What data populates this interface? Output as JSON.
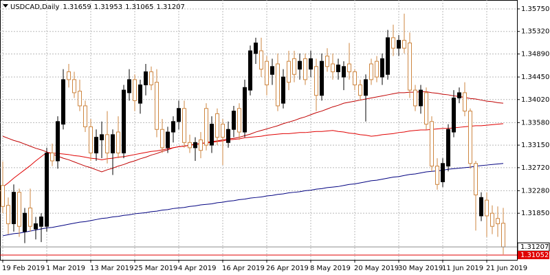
{
  "chart_data": {
    "type": "candlestick",
    "symbol": "USDCAD,Daily",
    "categories": [
      "19 Feb 2019",
      null,
      null,
      null,
      null,
      null,
      null,
      null,
      "1 Mar 2019",
      null,
      null,
      null,
      null,
      null,
      null,
      null,
      "13 Mar 2019",
      null,
      null,
      null,
      null,
      null,
      null,
      null,
      "25 Mar 2019",
      null,
      null,
      null,
      null,
      null,
      null,
      null,
      "4 Apr 2019",
      null,
      null,
      null,
      null,
      null,
      null,
      null,
      "16 Apr 2019",
      null,
      null,
      null,
      null,
      null,
      null,
      null,
      "26 Apr 2019",
      null,
      null,
      null,
      null,
      null,
      null,
      null,
      "8 May 2019",
      null,
      null,
      null,
      null,
      null,
      null,
      null,
      "20 May 2019",
      null,
      null,
      null,
      null,
      null,
      null,
      null,
      "30 May 2019",
      null,
      null,
      null,
      null,
      null,
      null,
      null,
      "11 Jun 2019",
      null,
      null,
      null,
      null,
      null,
      null,
      null,
      "21 Jun 2019",
      null,
      null,
      null
    ],
    "open": [
      1.3238,
      1.32,
      1.3165,
      1.3225,
      1.315,
      1.3195,
      1.3155,
      1.316,
      1.316,
      1.33,
      1.3285,
      1.3355,
      1.3455,
      1.344,
      1.3418,
      1.339,
      1.335,
      1.33,
      1.3325,
      1.3335,
      1.33,
      1.334,
      1.33,
      1.3415,
      1.344,
      1.3395,
      1.343,
      1.3455,
      1.3435,
      1.3345,
      1.331,
      1.334,
      1.336,
      1.3385,
      1.332,
      1.331,
      1.3325,
      1.3385,
      1.3315,
      1.3375,
      1.3355,
      1.332,
      1.3345,
      1.3385,
      1.334,
      1.342,
      1.349,
      1.3495,
      1.3475,
      1.345,
      1.347,
      1.3395,
      1.3475,
      1.348,
      1.346,
      1.348,
      1.346,
      1.3465,
      1.341,
      1.3485,
      1.347,
      1.3455,
      1.3445,
      1.347,
      1.3455,
      1.343,
      1.341,
      1.347,
      1.3475,
      1.3445,
      1.345,
      1.352,
      1.35,
      1.3515,
      1.351,
      1.342,
      1.339,
      1.3415,
      1.336,
      1.3275,
      1.3245,
      1.3275,
      1.334,
      1.3405,
      1.3415,
      1.338,
      1.328,
      1.318,
      1.321,
      1.3185,
      1.3175,
      1.31659
    ],
    "high": [
      1.3284,
      1.3215,
      1.324,
      1.3232,
      1.3195,
      1.3232,
      1.3178,
      1.3185,
      1.331,
      1.3318,
      1.337,
      1.346,
      1.347,
      1.3455,
      1.344,
      1.34,
      1.3365,
      1.3345,
      1.336,
      1.338,
      1.3345,
      1.337,
      1.343,
      1.346,
      1.345,
      1.344,
      1.347,
      1.3465,
      1.346,
      1.3365,
      1.335,
      1.337,
      1.34,
      1.34,
      1.3335,
      1.333,
      1.334,
      1.3395,
      1.337,
      1.3385,
      1.3365,
      1.336,
      1.339,
      1.3395,
      1.344,
      1.3505,
      1.352,
      1.352,
      1.3485,
      1.348,
      1.349,
      1.346,
      1.3495,
      1.3495,
      1.349,
      1.349,
      1.3495,
      1.348,
      1.349,
      1.35,
      1.349,
      1.348,
      1.3475,
      1.351,
      1.346,
      1.344,
      1.345,
      1.348,
      1.3485,
      1.349,
      1.3535,
      1.3545,
      1.3525,
      1.3566,
      1.353,
      1.343,
      1.343,
      1.3425,
      1.337,
      1.329,
      1.329,
      1.3355,
      1.342,
      1.3425,
      1.3435,
      1.3385,
      1.3285,
      1.3225,
      1.3225,
      1.32,
      1.3198,
      1.31953
    ],
    "low": [
      1.3185,
      1.3145,
      1.315,
      1.314,
      1.3128,
      1.315,
      1.3135,
      1.313,
      1.315,
      1.3275,
      1.327,
      1.3345,
      1.3425,
      1.3405,
      1.338,
      1.334,
      1.3285,
      1.3285,
      1.329,
      1.328,
      1.3258,
      1.329,
      1.329,
      1.34,
      1.338,
      1.3375,
      1.341,
      1.342,
      1.333,
      1.33,
      1.33,
      1.332,
      1.3345,
      1.331,
      1.33,
      1.3285,
      1.329,
      1.3305,
      1.33,
      1.3315,
      1.3277,
      1.331,
      1.333,
      1.3325,
      1.333,
      1.341,
      1.347,
      1.3445,
      1.341,
      1.343,
      1.338,
      1.3385,
      1.342,
      1.3435,
      1.344,
      1.343,
      1.3445,
      1.338,
      1.34,
      1.3455,
      1.344,
      1.344,
      1.342,
      1.344,
      1.342,
      1.34,
      1.336,
      1.343,
      1.3435,
      1.343,
      1.344,
      1.3485,
      1.3485,
      1.349,
      1.3405,
      1.338,
      1.3375,
      1.3345,
      1.3265,
      1.323,
      1.3235,
      1.3265,
      1.333,
      1.3395,
      1.337,
      1.327,
      1.3152,
      1.317,
      1.314,
      1.3145,
      1.314,
      1.31065
    ],
    "close": [
      1.3198,
      1.3165,
      1.3225,
      1.316,
      1.3185,
      1.316,
      1.3165,
      1.3178,
      1.33,
      1.3285,
      1.336,
      1.344,
      1.344,
      1.3415,
      1.339,
      1.335,
      1.33,
      1.333,
      1.3335,
      1.33,
      1.3335,
      1.33,
      1.342,
      1.344,
      1.34,
      1.343,
      1.3455,
      1.343,
      1.3345,
      1.331,
      1.334,
      1.336,
      1.3385,
      1.332,
      1.331,
      1.332,
      1.3305,
      1.3315,
      1.3355,
      1.333,
      1.333,
      1.3345,
      1.338,
      1.334,
      1.3425,
      1.3495,
      1.351,
      1.346,
      1.343,
      1.3465,
      1.339,
      1.3445,
      1.3435,
      1.345,
      1.3475,
      1.344,
      1.348,
      1.341,
      1.3475,
      1.3465,
      1.3455,
      1.3468,
      1.3465,
      1.3455,
      1.343,
      1.341,
      1.344,
      1.344,
      1.3445,
      1.348,
      1.352,
      1.35,
      1.3515,
      1.35,
      1.342,
      1.339,
      1.342,
      1.3355,
      1.3275,
      1.324,
      1.328,
      1.3345,
      1.3405,
      1.3415,
      1.338,
      1.328,
      1.322,
      1.3215,
      1.318,
      1.316,
      1.3165,
      1.31207
    ],
    "up_color": "#000000",
    "down_color": "#cd853f",
    "series": [
      {
        "color": "#c00000",
        "values": [
          1.3332,
          1.3328,
          1.3324,
          1.3321,
          1.3317,
          1.3313,
          1.3309,
          1.3306,
          1.3302,
          1.3298,
          1.3294,
          1.329,
          1.3287,
          1.3283,
          1.3279,
          1.3275,
          1.3272,
          1.3268,
          1.3264,
          1.3268,
          1.3271,
          1.3275,
          1.3278,
          1.3282,
          1.3285,
          1.3289,
          1.3292,
          1.3296,
          1.3299,
          1.3303,
          1.3306,
          1.331,
          1.3312,
          1.3313,
          1.3315,
          1.3317,
          1.3318,
          1.332,
          1.3322,
          1.3323,
          1.3325,
          1.3327,
          1.3328,
          1.333,
          1.3333,
          1.3336,
          1.334,
          1.3343,
          1.3346,
          1.3349,
          1.3352,
          1.3356,
          1.3359,
          1.3362,
          1.3366,
          1.3369,
          1.3373,
          1.3377,
          1.338,
          1.3384,
          1.3388,
          1.3391,
          1.3395,
          1.3397,
          1.3399,
          1.3401,
          1.3403,
          1.3405,
          1.3407,
          1.3409,
          1.3411,
          1.3413,
          1.3415,
          1.3415,
          1.3416,
          1.3416,
          1.3417,
          1.3417,
          1.3415,
          1.3414,
          1.3412,
          1.3411,
          1.3409,
          1.3408,
          1.3406,
          1.3404,
          1.3403,
          1.3401,
          1.3399,
          1.3398,
          1.3396,
          1.3395
        ]
      },
      {
        "color": "#e00000",
        "values": [
          1.3235,
          1.3243,
          1.3252,
          1.326,
          1.3268,
          1.3276,
          1.3285,
          1.3293,
          1.3301,
          1.33,
          1.3299,
          1.3298,
          1.3297,
          1.3295,
          1.3294,
          1.3292,
          1.329,
          1.3289,
          1.3287,
          1.3289,
          1.329,
          1.3292,
          1.3293,
          1.3295,
          1.3297,
          1.3299,
          1.3301,
          1.3303,
          1.3304,
          1.3306,
          1.3308,
          1.331,
          1.3312,
          1.3313,
          1.3315,
          1.3316,
          1.3318,
          1.3319,
          1.332,
          1.3322,
          1.3323,
          1.3325,
          1.3326,
          1.3327,
          1.3329,
          1.333,
          1.3331,
          1.3332,
          1.3334,
          1.3335,
          1.3336,
          1.3337,
          1.3337,
          1.3338,
          1.3339,
          1.3339,
          1.334,
          1.3341,
          1.3341,
          1.3342,
          1.3343,
          1.3341,
          1.334,
          1.3338,
          1.3337,
          1.3335,
          1.3334,
          1.3332,
          1.3333,
          1.3335,
          1.3336,
          1.3337,
          1.3339,
          1.334,
          1.3342,
          1.3343,
          1.3344,
          1.3344,
          1.3345,
          1.3346,
          1.3347,
          1.3347,
          1.3348,
          1.3349,
          1.335,
          1.3351,
          1.3352,
          1.3352,
          1.3353,
          1.3354,
          1.3355,
          1.3356
        ]
      },
      {
        "color": "#000080",
        "values": [
          1.3142,
          1.3144,
          1.3146,
          1.3147,
          1.3149,
          1.3151,
          1.3153,
          1.3155,
          1.3157,
          1.3158,
          1.316,
          1.3162,
          1.3164,
          1.3166,
          1.3168,
          1.3169,
          1.3171,
          1.3173,
          1.3175,
          1.3176,
          1.3178,
          1.3179,
          1.3181,
          1.3182,
          1.3184,
          1.3185,
          1.3186,
          1.3188,
          1.3189,
          1.3191,
          1.3192,
          1.3194,
          1.3195,
          1.3196,
          1.3198,
          1.3199,
          1.3201,
          1.3202,
          1.3203,
          1.3205,
          1.3206,
          1.3208,
          1.3209,
          1.3211,
          1.3212,
          1.3214,
          1.3215,
          1.3216,
          1.3218,
          1.3219,
          1.3221,
          1.3222,
          1.3224,
          1.3225,
          1.3226,
          1.3228,
          1.3229,
          1.3231,
          1.3232,
          1.3234,
          1.3235,
          1.3236,
          1.3238,
          1.324,
          1.3241,
          1.3243,
          1.3245,
          1.3247,
          1.3248,
          1.325,
          1.3252,
          1.3254,
          1.3255,
          1.3257,
          1.3259,
          1.326,
          1.3262,
          1.3264,
          1.3265,
          1.3266,
          1.3267,
          1.3269,
          1.327,
          1.3271,
          1.3272,
          1.3273,
          1.3275,
          1.3276,
          1.3277,
          1.3278,
          1.3279,
          1.328
        ]
      }
    ],
    "ask": 1.31052,
    "ask_color": "#e00000",
    "ylim": [
      1.3096,
      1.3592
    ],
    "yticks": [
      {
        "value": 1.3575,
        "label": "1.35750"
      },
      {
        "value": 1.3532,
        "label": "1.35320"
      },
      {
        "value": 1.3489,
        "label": "1.34890"
      },
      {
        "value": 1.3445,
        "label": "1.34450"
      },
      {
        "value": 1.3402,
        "label": "1.34020"
      },
      {
        "value": 1.3358,
        "label": "1.33580"
      },
      {
        "value": 1.3315,
        "label": "1.33150"
      },
      {
        "value": 1.3272,
        "label": "1.32720"
      },
      {
        "value": 1.3228,
        "label": "1.32280"
      },
      {
        "value": 1.3185,
        "label": "1.31850"
      }
    ],
    "grid": true
  }
}
